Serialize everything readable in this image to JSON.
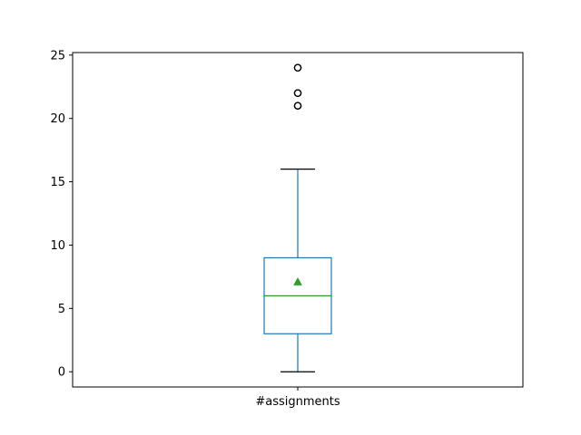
{
  "chart_data": {
    "type": "box",
    "title": "",
    "xlabel": "",
    "ylabel": "",
    "categories": [
      "#assignments"
    ],
    "ylim": [
      -1.2,
      25.2
    ],
    "yticks": [
      0,
      5,
      10,
      15,
      20,
      25
    ],
    "grid": false,
    "series": [
      {
        "category": "#assignments",
        "whisker_low": 0,
        "q1": 3,
        "median": 6,
        "q3": 9,
        "whisker_high": 16,
        "mean": 7.1,
        "outliers": [
          21,
          21,
          22,
          22,
          24,
          24
        ]
      }
    ],
    "colors": {
      "box": "#1f77b4",
      "median": "#2ca02c",
      "mean_marker": "#2ca02c",
      "whisker_cap": "#000000",
      "outlier": "#000000"
    }
  }
}
